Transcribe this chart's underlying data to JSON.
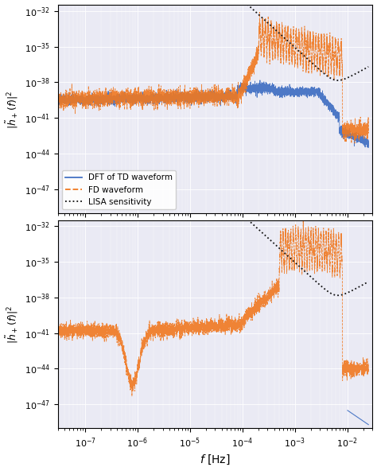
{
  "ylabel": "$|\\tilde{h}_+(f)|^2$",
  "xlabel": "$f$ [Hz]",
  "xlim": [
    3e-08,
    0.03
  ],
  "ylim": [
    1e-49,
    3e-32
  ],
  "yticks": [
    1e-32,
    1e-35,
    1e-38,
    1e-41,
    1e-44,
    1e-47
  ],
  "colors": {
    "blue": "#4472c4",
    "orange": "#f07820",
    "black": "#111111"
  },
  "legend": [
    "DFT of TD waveform",
    "FD waveform",
    "LISA sensitivity"
  ],
  "background": "#eaeaf4"
}
